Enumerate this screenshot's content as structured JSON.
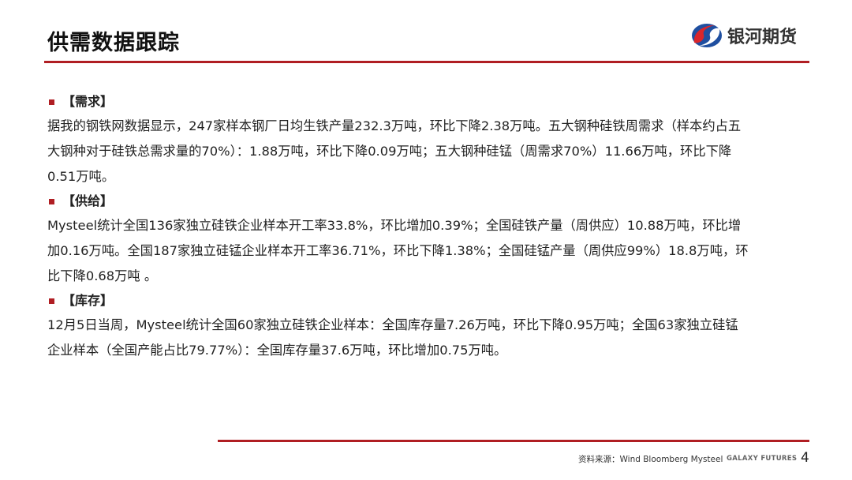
{
  "header": {
    "title": "供需数据跟踪",
    "logo_text": "银河期货"
  },
  "sections": [
    {
      "heading": "【需求】",
      "lines": [
        "据我的钢铁网数据显示，247家样本钢厂日均生铁产量232.3万吨，环比下降2.38万吨。五大钢种硅铁周需求（样本约占五",
        "大钢种对于硅铁总需求量的70%）：1.88万吨，环比下降0.09万吨；五大钢种硅锰（周需求70%）11.66万吨，环比下降",
        "0.51万吨。"
      ]
    },
    {
      "heading": "【供给】",
      "lines": [
        "Mysteel统计全国136家独立硅铁企业样本开工率33.8%，环比增加0.39%；全国硅铁产量（周供应）10.88万吨，环比增",
        "加0.16万吨。全国187家独立硅锰企业样本开工率36.71%，环比下降1.38%；全国硅锰产量（周供应99%）18.8万吨，环",
        "比下降0.68万吨 。"
      ]
    },
    {
      "heading": "【库存】",
      "lines": [
        "12月5日当周，Mysteel统计全国60家独立硅铁企业样本：全国库存量7.26万吨，环比下降0.95万吨；全国63家独立硅锰",
        "企业样本（全国产能占比79.77%）：全国库存量37.6万吨，环比增加0.75万吨。"
      ]
    }
  ],
  "footer": {
    "source": "资料来源：Wind Bloomberg Mysteel",
    "brand": "GALAXY FUTURES",
    "page": "4"
  },
  "colors": {
    "accent": "#b01e23",
    "logo_blue": "#1f4fa0"
  }
}
